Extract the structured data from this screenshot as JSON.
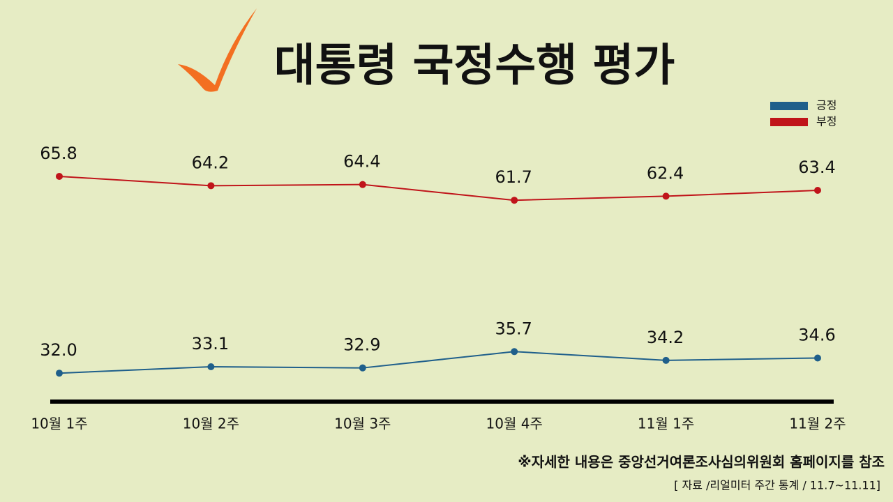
{
  "chart_data": {
    "type": "line",
    "title": "대통령 국정수행 평가",
    "categories": [
      "10월 1주",
      "10월 2주",
      "10월 3주",
      "10월 4주",
      "11월 1주",
      "11월 2주"
    ],
    "series": [
      {
        "name": "긍정",
        "color": "#1f5f8b",
        "values": [
          32.0,
          33.1,
          32.9,
          35.7,
          34.2,
          34.6
        ],
        "value_labels": [
          "32.0",
          "33.1",
          "32.9",
          "35.7",
          "34.2",
          "34.6"
        ]
      },
      {
        "name": "부정",
        "color": "#c0141a",
        "values": [
          65.8,
          64.2,
          64.4,
          61.7,
          62.4,
          63.4
        ],
        "value_labels": [
          "65.8",
          "64.2",
          "64.4",
          "61.7",
          "62.4",
          "63.4"
        ]
      }
    ],
    "legend": "top-right",
    "notes": [
      "※자세한 내용은 중앙선거여론조사심의위원회 홈페이지를 참조",
      "[ 자료 /리얼미터 주간 통계 / 11.7~11.11]"
    ]
  }
}
